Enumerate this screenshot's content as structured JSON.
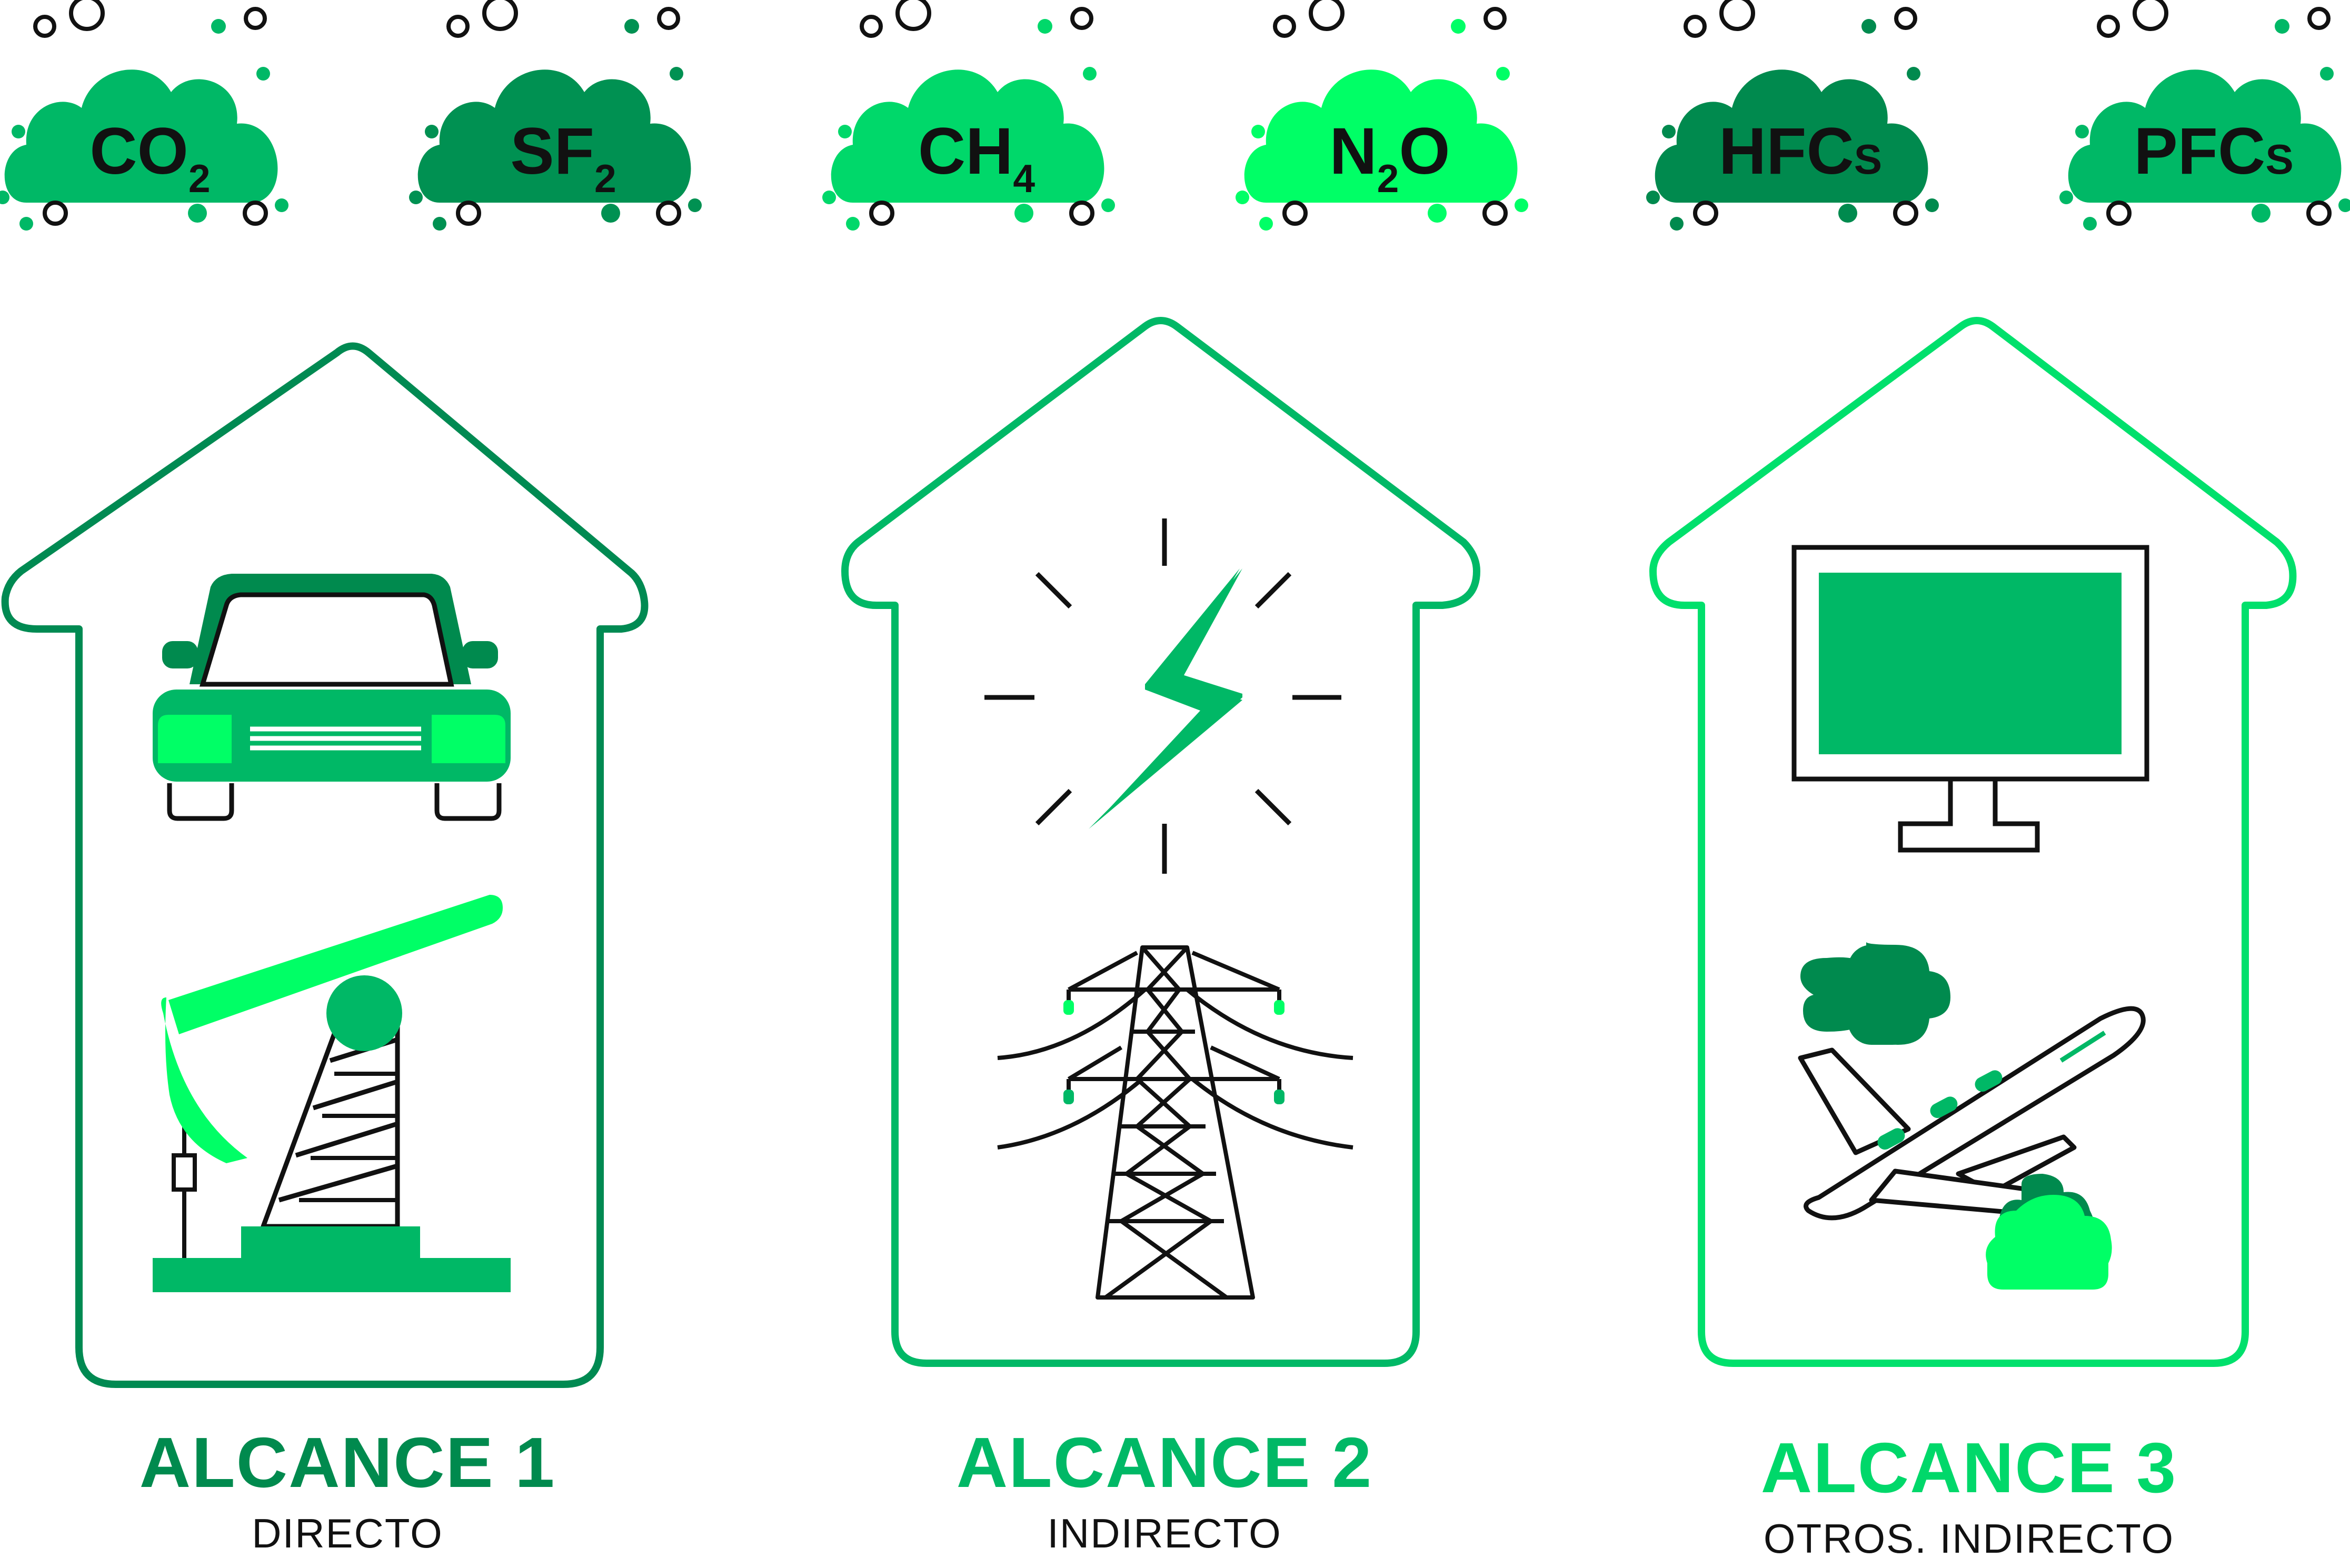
{
  "gases": [
    {
      "main": "CO",
      "sub": "2",
      "color": "#00B866"
    },
    {
      "main": "SF",
      "sub": "2",
      "color": "#009152"
    },
    {
      "main": "CH",
      "sub": "4",
      "color": "#00D86A"
    },
    {
      "main": "N",
      "sub": "2",
      "tail": "O",
      "color": "#00FF66"
    },
    {
      "main": "HFC",
      "sub": "S",
      "color": "#008A4E"
    },
    {
      "main": "PFC",
      "sub": "S",
      "color": "#00B866"
    }
  ],
  "scopes": [
    {
      "title": "ALCANCE 1",
      "subtitle": "DIRECTO",
      "color": "#008A52",
      "title_color": "#008A4E"
    },
    {
      "title": "ALCANCE 2",
      "subtitle": "INDIRECTO",
      "color": "#00B866",
      "title_color": "#00B866"
    },
    {
      "title": "ALCANCE 3",
      "subtitle": "OTROS. INDIRECTO",
      "color": "#00E06C",
      "title_color": "#00D86A"
    }
  ],
  "colors": {
    "dark_green": "#008A4E",
    "mid_green": "#00B866",
    "light_green": "#00FF66",
    "line": "#111111"
  }
}
